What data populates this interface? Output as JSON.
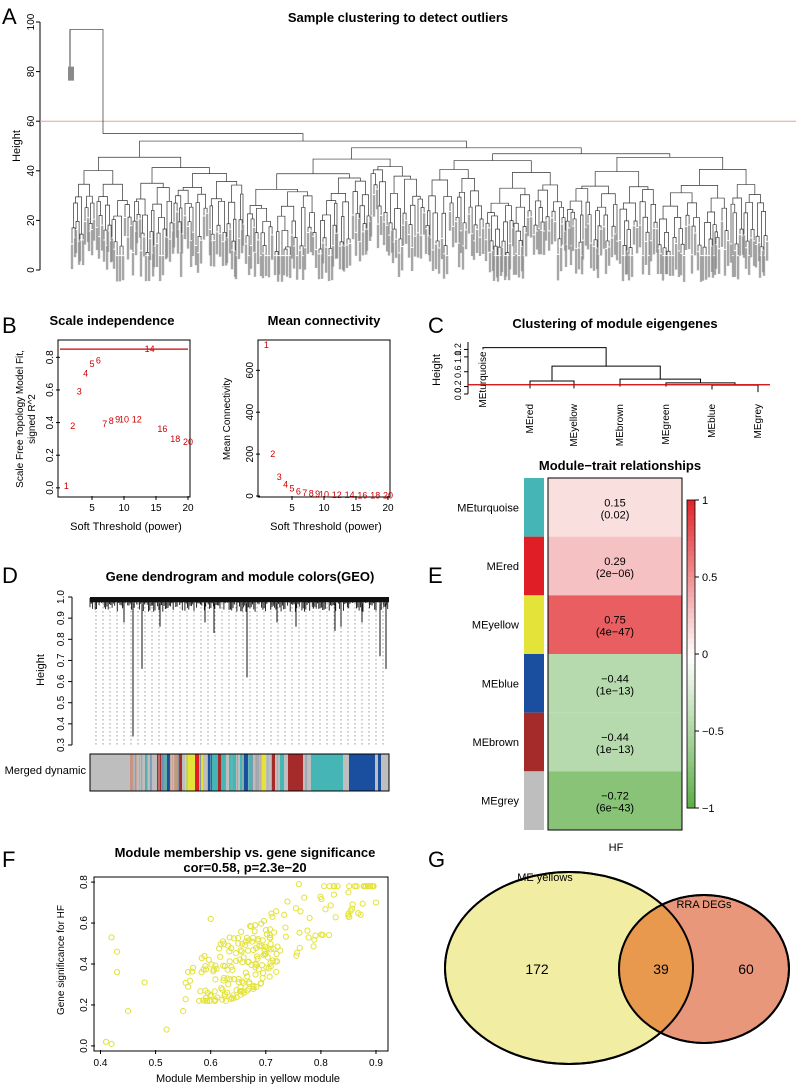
{
  "panels": {
    "A": "A",
    "B": "B",
    "C": "C",
    "D": "D",
    "E": "E",
    "F": "F",
    "G": "G"
  },
  "colors": {
    "cutoff": "#e8a090",
    "redline": "#cc0000",
    "red_text": "#cc0000",
    "yellow_pt": "#e3e33a",
    "venn_left": "#f1eea3",
    "venn_right": "#e9977b",
    "venn_overlap": "#e8994e",
    "turquoise": "#46b5b5",
    "red": "#e01e25",
    "yellow": "#e3e33a",
    "blue": "#1a4fa0",
    "brown": "#a52a2a",
    "grey": "#bebebe"
  },
  "chart_data": [
    {
      "id": "A",
      "type": "dendrogram",
      "title": "Sample clustering to detect outliers",
      "ylabel": "Height",
      "ylim": [
        0,
        100
      ],
      "yticks": [
        0,
        20,
        40,
        60,
        80,
        100
      ],
      "cut_height": 60,
      "outlier_height": 97,
      "main_merge_height": 55
    },
    {
      "id": "B1",
      "type": "scatter",
      "title": "Scale independence",
      "xlabel": "Soft Threshold (power)",
      "ylabel": "Scale Free Topology Model Fit,\nsigned R^2",
      "ylabel_lines": [
        "Scale Free Topology Model Fit,",
        "signed R^2"
      ],
      "xlim": [
        0,
        20
      ],
      "ylim": [
        -0.05,
        0.9
      ],
      "xticks": [
        5,
        10,
        15,
        20
      ],
      "yticks": [
        0.0,
        0.2,
        0.4,
        0.6,
        0.8
      ],
      "ytick_labels": [
        "0.0",
        "0.2",
        "0.4",
        "0.6",
        "0.8"
      ],
      "hline": 0.85,
      "powers": [
        1,
        2,
        3,
        4,
        5,
        6,
        7,
        8,
        9,
        10,
        12,
        14,
        16,
        18,
        20
      ],
      "values": [
        0.01,
        0.38,
        0.59,
        0.7,
        0.76,
        0.78,
        0.39,
        0.41,
        0.42,
        0.42,
        0.42,
        0.85,
        0.36,
        0.3,
        0.28
      ]
    },
    {
      "id": "B2",
      "type": "scatter",
      "title": "Mean connectivity",
      "xlabel": "Soft Threshold (power)",
      "ylabel": "Mean Connectivity",
      "xlim": [
        0,
        20
      ],
      "ylim": [
        0,
        740
      ],
      "xticks": [
        5,
        10,
        15,
        20
      ],
      "yticks": [
        0,
        200,
        400,
        600
      ],
      "powers": [
        1,
        2,
        3,
        4,
        5,
        6,
        7,
        8,
        9,
        10,
        12,
        14,
        16,
        18,
        20
      ],
      "values": [
        720,
        200,
        90,
        55,
        35,
        22,
        15,
        11,
        9,
        7,
        5,
        4,
        3,
        2,
        2
      ]
    },
    {
      "id": "C",
      "type": "dendrogram",
      "title": "Clustering of module eigengenes",
      "ylabel": "Height",
      "ylim": [
        0,
        1.4
      ],
      "yticks": [
        0.0,
        0.2,
        0.6,
        1.0,
        1.2
      ],
      "ytick_labels": [
        "0.0",
        "0.2",
        "0.6",
        "1.0",
        "1.2"
      ],
      "cut_height": 0.25,
      "leaves": [
        "MEturquoise",
        "MEred",
        "MEyellow",
        "MEbrown",
        "MEgreen",
        "MEblue",
        "MEgrey"
      ],
      "merges": [
        {
          "a": "MEred",
          "b": "MEyellow",
          "height": 0.35
        },
        {
          "a": "MEblue",
          "b": "MEgrey",
          "height": 0.24
        },
        {
          "a": "MEgreen",
          "b": "MEblue+MEgrey",
          "height": 0.3
        },
        {
          "a": "MEbrown",
          "b": "MEgreen+",
          "height": 0.4
        },
        {
          "a": "red/yellow",
          "b": "brown/green/blue/grey",
          "height": 0.75
        },
        {
          "a": "MEturquoise",
          "b": "rest",
          "height": 1.25
        }
      ]
    },
    {
      "id": "D",
      "type": "dendrogram",
      "title": "Gene dendrogram and module colors(GEO)",
      "ylabel": "Height",
      "ylim": [
        0.3,
        1.0
      ],
      "yticks": [
        0.3,
        0.4,
        0.5,
        0.6,
        0.7,
        0.8,
        0.9,
        1.0
      ],
      "ytick_labels": [
        "0.3",
        "0.4",
        "0.5",
        "0.6",
        "0.7",
        "0.8",
        "0.9",
        "1.0"
      ],
      "color_bar_label": "Merged dynamic"
    },
    {
      "id": "E",
      "type": "heatmap",
      "title": "Module−trait relationships",
      "rows": [
        "MEturquoise",
        "MEred",
        "MEyellow",
        "MEblue",
        "MEbrown",
        "MEgrey"
      ],
      "row_colors": [
        "#46b5b5",
        "#e01e25",
        "#e3e33a",
        "#1a4fa0",
        "#a52a2a",
        "#bebebe"
      ],
      "columns": [
        "HF"
      ],
      "values": [
        0.15,
        0.29,
        0.75,
        -0.44,
        -0.44,
        -0.72
      ],
      "value_labels": [
        "0.15",
        "0.29",
        "0.75",
        "−0.44",
        "−0.44",
        "−0.72"
      ],
      "pvalue_labels": [
        "(0.02)",
        "(2e−06)",
        "(4e−47)",
        "(1e−13)",
        "(1e−13)",
        "(6e−43)"
      ],
      "colorbar_ticks": [
        1,
        0.5,
        0,
        -0.5,
        -1
      ],
      "colorbar_labels": [
        "1",
        "0.5",
        "0",
        "−0.5",
        "−1"
      ]
    },
    {
      "id": "F",
      "type": "scatter",
      "title": "Module membership vs. gene significance",
      "subtitle": "cor=0.58, p=2.3e−20",
      "xlabel": "Module Membership in yellow module",
      "ylabel": "Gene significance for  HF",
      "xlim": [
        0.39,
        0.92
      ],
      "ylim": [
        -0.02,
        0.82
      ],
      "xticks": [
        0.4,
        0.5,
        0.6,
        0.7,
        0.8,
        0.9
      ],
      "xtick_labels": [
        "0.4",
        "0.5",
        "0.6",
        "0.7",
        "0.8",
        "0.9"
      ],
      "yticks": [
        0.0,
        0.2,
        0.4,
        0.6,
        0.8
      ],
      "ytick_labels": [
        "0.0",
        "0.2",
        "0.4",
        "0.6",
        "0.8"
      ],
      "n_points": 239,
      "cor": 0.58,
      "p": "2.3e−20",
      "sample_points": [
        [
          0.41,
          0.02
        ],
        [
          0.42,
          0.01
        ],
        [
          0.42,
          0.53
        ],
        [
          0.43,
          0.36
        ],
        [
          0.43,
          0.46
        ],
        [
          0.45,
          0.17
        ],
        [
          0.48,
          0.31
        ],
        [
          0.52,
          0.08
        ],
        [
          0.55,
          0.17
        ],
        [
          0.6,
          0.62
        ],
        [
          0.65,
          0.5
        ],
        [
          0.7,
          0.45
        ],
        [
          0.76,
          0.79
        ],
        [
          0.85,
          0.75
        ],
        [
          0.9,
          0.7
        ]
      ]
    },
    {
      "id": "G",
      "type": "venn",
      "sets": [
        {
          "name": "ME yellows",
          "only": 172,
          "color": "#f1eea3"
        },
        {
          "name": "RRA DEGs",
          "only": 60,
          "color": "#e9977b"
        }
      ],
      "overlap": 39,
      "labels": {
        "left_name": "ME yellows",
        "right_name": "RRA DEGs",
        "left": "172",
        "overlap": "39",
        "right": "60"
      }
    }
  ]
}
